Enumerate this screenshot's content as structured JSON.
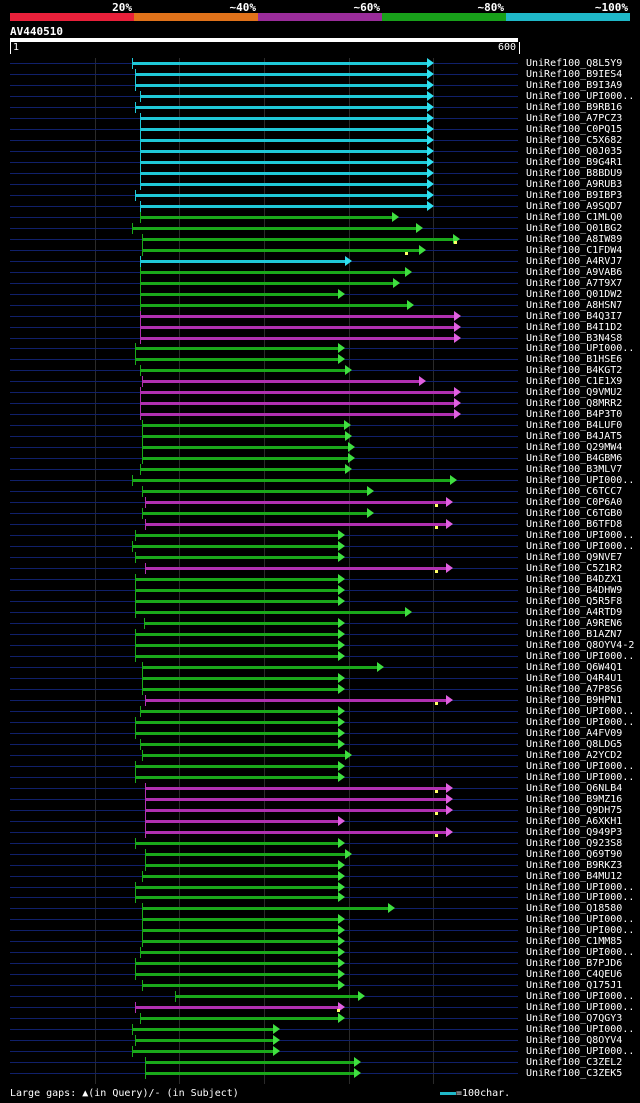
{
  "legend": {
    "items": [
      {
        "label": "20%",
        "color": "#e8203a"
      },
      {
        "label": "~40%",
        "color": "#e0721a"
      },
      {
        "label": "~60%",
        "color": "#9a2c9a"
      },
      {
        "label": "~80%",
        "color": "#18a01a"
      },
      {
        "label": "~100%",
        "color": "#1fb8c8"
      }
    ]
  },
  "query": {
    "label": "AV440510",
    "length_start": "1",
    "length_end": "600"
  },
  "footer": {
    "gaps_text": "Large gaps: ▲(in Query)/- (in Subject)",
    "scale_text": "=100char."
  },
  "hits": [
    {
      "name": "UniRef100_Q8L5Y9",
      "start": 144,
      "end": 500,
      "identity": "100"
    },
    {
      "name": "UniRef100_B9IES4",
      "start": 148,
      "end": 500,
      "identity": "100"
    },
    {
      "name": "UniRef100_B9I3A9",
      "start": 148,
      "end": 500,
      "identity": "100"
    },
    {
      "name": "UniRef100_UPI000..",
      "start": 154,
      "end": 500,
      "identity": "100"
    },
    {
      "name": "UniRef100_B9RB16",
      "start": 148,
      "end": 500,
      "identity": "100"
    },
    {
      "name": "UniRef100_A7PCZ3",
      "start": 154,
      "end": 500,
      "identity": "100"
    },
    {
      "name": "UniRef100_C0PQ15",
      "start": 154,
      "end": 500,
      "identity": "100"
    },
    {
      "name": "UniRef100_C5X682",
      "start": 154,
      "end": 500,
      "identity": "100"
    },
    {
      "name": "UniRef100_Q0J035",
      "start": 154,
      "end": 500,
      "identity": "100"
    },
    {
      "name": "UniRef100_B9G4R1",
      "start": 154,
      "end": 500,
      "identity": "100"
    },
    {
      "name": "UniRef100_B8BDU9",
      "start": 154,
      "end": 500,
      "identity": "100"
    },
    {
      "name": "UniRef100_A9RUB3",
      "start": 154,
      "end": 500,
      "identity": "100"
    },
    {
      "name": "UniRef100_B9IBP3",
      "start": 148,
      "end": 500,
      "identity": "100"
    },
    {
      "name": "UniRef100_A9SQD7",
      "start": 154,
      "end": 500,
      "identity": "100"
    },
    {
      "name": "UniRef100_C1MLQ0",
      "start": 154,
      "end": 458,
      "identity": "80"
    },
    {
      "name": "UniRef100_Q01BG2",
      "start": 144,
      "end": 487,
      "identity": "80"
    },
    {
      "name": "UniRef100_A8IW89",
      "start": 156,
      "end": 530,
      "identity": "80",
      "gap": 524
    },
    {
      "name": "UniRef100_C1FDW4",
      "start": 156,
      "end": 490,
      "identity": "80",
      "gap": 466
    },
    {
      "name": "UniRef100_A4RVJ7",
      "start": 154,
      "end": 403,
      "identity": "100"
    },
    {
      "name": "UniRef100_A9VAB6",
      "start": 154,
      "end": 474,
      "identity": "80"
    },
    {
      "name": "UniRef100_A7T9X7",
      "start": 154,
      "end": 460,
      "identity": "80"
    },
    {
      "name": "UniRef100_Q01DW2",
      "start": 154,
      "end": 395,
      "identity": "80"
    },
    {
      "name": "UniRef100_A8HSN7",
      "start": 154,
      "end": 476,
      "identity": "80"
    },
    {
      "name": "UniRef100_B4Q3I7",
      "start": 154,
      "end": 531,
      "identity": "60"
    },
    {
      "name": "UniRef100_B4I1D2",
      "start": 154,
      "end": 531,
      "identity": "60"
    },
    {
      "name": "UniRef100_B3N4S8",
      "start": 154,
      "end": 531,
      "identity": "60"
    },
    {
      "name": "UniRef100_UPI000..",
      "start": 148,
      "end": 395,
      "identity": "80"
    },
    {
      "name": "UniRef100_B1HSE6",
      "start": 148,
      "end": 395,
      "identity": "80"
    },
    {
      "name": "UniRef100_B4KGT2",
      "start": 154,
      "end": 403,
      "identity": "80"
    },
    {
      "name": "UniRef100_C1E1X9",
      "start": 156,
      "end": 490,
      "identity": "60"
    },
    {
      "name": "UniRef100_Q9VMU2",
      "start": 154,
      "end": 531,
      "identity": "60"
    },
    {
      "name": "UniRef100_Q8MRR2",
      "start": 154,
      "end": 531,
      "identity": "60"
    },
    {
      "name": "UniRef100_B4P3T0",
      "start": 154,
      "end": 531,
      "identity": "60"
    },
    {
      "name": "UniRef100_B4LUF0",
      "start": 156,
      "end": 402,
      "identity": "80"
    },
    {
      "name": "UniRef100_B4JAT5",
      "start": 156,
      "end": 403,
      "identity": "80"
    },
    {
      "name": "UniRef100_Q29MW4",
      "start": 156,
      "end": 406,
      "identity": "80"
    },
    {
      "name": "UniRef100_B4GBM6",
      "start": 156,
      "end": 406,
      "identity": "80"
    },
    {
      "name": "UniRef100_B3MLV7",
      "start": 154,
      "end": 403,
      "identity": "80"
    },
    {
      "name": "UniRef100_UPI000..",
      "start": 144,
      "end": 527,
      "identity": "80"
    },
    {
      "name": "UniRef100_C6TCC7",
      "start": 156,
      "end": 429,
      "identity": "80"
    },
    {
      "name": "UniRef100_C0P6A0",
      "start": 159,
      "end": 522,
      "identity": "60",
      "gap": 502
    },
    {
      "name": "UniRef100_C6TGB0",
      "start": 156,
      "end": 429,
      "identity": "80"
    },
    {
      "name": "UniRef100_B6TFD8",
      "start": 159,
      "end": 522,
      "identity": "60",
      "gap": 502
    },
    {
      "name": "UniRef100_UPI000..",
      "start": 148,
      "end": 395,
      "identity": "80"
    },
    {
      "name": "UniRef100_UPI000..",
      "start": 144,
      "end": 395,
      "identity": "80"
    },
    {
      "name": "UniRef100_Q9NVE7",
      "start": 148,
      "end": 395,
      "identity": "80"
    },
    {
      "name": "UniRef100_C5Z1R2",
      "start": 159,
      "end": 522,
      "identity": "60",
      "gap": 502
    },
    {
      "name": "UniRef100_B4DZX1",
      "start": 148,
      "end": 395,
      "identity": "80"
    },
    {
      "name": "UniRef100_B4DHW9",
      "start": 148,
      "end": 395,
      "identity": "80"
    },
    {
      "name": "UniRef100_Q5R5F8",
      "start": 148,
      "end": 395,
      "identity": "80"
    },
    {
      "name": "UniRef100_A4RTD9",
      "start": 148,
      "end": 474,
      "identity": "80"
    },
    {
      "name": "UniRef100_A9REN6",
      "start": 158,
      "end": 395,
      "identity": "80"
    },
    {
      "name": "UniRef100_B1AZN7",
      "start": 148,
      "end": 395,
      "identity": "80"
    },
    {
      "name": "UniRef100_Q8OYV4-2",
      "start": 148,
      "end": 395,
      "identity": "80"
    },
    {
      "name": "UniRef100_UPI000..",
      "start": 148,
      "end": 395,
      "identity": "80"
    },
    {
      "name": "UniRef100_Q6W4Q1",
      "start": 156,
      "end": 440,
      "identity": "80"
    },
    {
      "name": "UniRef100_Q4R4U1",
      "start": 156,
      "end": 395,
      "identity": "80"
    },
    {
      "name": "UniRef100_A7P8S6",
      "start": 156,
      "end": 395,
      "identity": "80"
    },
    {
      "name": "UniRef100_B9HPN1",
      "start": 159,
      "end": 522,
      "identity": "60",
      "gap": 502
    },
    {
      "name": "UniRef100_UPI000..",
      "start": 154,
      "end": 395,
      "identity": "80"
    },
    {
      "name": "UniRef100_UPI000..",
      "start": 148,
      "end": 395,
      "identity": "80"
    },
    {
      "name": "UniRef100_A4FV09",
      "start": 148,
      "end": 395,
      "identity": "80"
    },
    {
      "name": "UniRef100_Q8LDG5",
      "start": 154,
      "end": 395,
      "identity": "80"
    },
    {
      "name": "UniRef100_A2YCD2",
      "start": 156,
      "end": 403,
      "identity": "80"
    },
    {
      "name": "UniRef100_UPI000..",
      "start": 148,
      "end": 395,
      "identity": "80"
    },
    {
      "name": "UniRef100_UPI000..",
      "start": 148,
      "end": 395,
      "identity": "80"
    },
    {
      "name": "UniRef100_Q6NLB4",
      "start": 159,
      "end": 522,
      "identity": "60",
      "gap": 502
    },
    {
      "name": "UniRef100_B9MZ16",
      "start": 159,
      "end": 522,
      "identity": "60"
    },
    {
      "name": "UniRef100_Q9DH75",
      "start": 159,
      "end": 522,
      "identity": "60",
      "gap": 502
    },
    {
      "name": "UniRef100_A6XKH1",
      "start": 159,
      "end": 395,
      "identity": "60"
    },
    {
      "name": "UniRef100_Q949P3",
      "start": 159,
      "end": 522,
      "identity": "60",
      "gap": 502
    },
    {
      "name": "UniRef100_Q923S8",
      "start": 148,
      "end": 395,
      "identity": "80"
    },
    {
      "name": "UniRef100_Q69T90",
      "start": 159,
      "end": 403,
      "identity": "80"
    },
    {
      "name": "UniRef100_B9RKZ3",
      "start": 159,
      "end": 395,
      "identity": "80"
    },
    {
      "name": "UniRef100_B4MU12",
      "start": 156,
      "end": 395,
      "identity": "80"
    },
    {
      "name": "UniRef100_UPI000..",
      "start": 148,
      "end": 395,
      "identity": "80"
    },
    {
      "name": "UniRef100_UPI000..",
      "start": 148,
      "end": 395,
      "identity": "80"
    },
    {
      "name": "UniRef100_Q18580",
      "start": 156,
      "end": 454,
      "identity": "80"
    },
    {
      "name": "UniRef100_UPI000..",
      "start": 156,
      "end": 395,
      "identity": "80"
    },
    {
      "name": "UniRef100_UPI000..",
      "start": 156,
      "end": 395,
      "identity": "80"
    },
    {
      "name": "UniRef100_C1MM85",
      "start": 156,
      "end": 395,
      "identity": "80"
    },
    {
      "name": "UniRef100_UPI000..",
      "start": 154,
      "end": 395,
      "identity": "80"
    },
    {
      "name": "UniRef100_B7PJD6",
      "start": 148,
      "end": 395,
      "identity": "80"
    },
    {
      "name": "UniRef100_C4QEU6",
      "start": 148,
      "end": 395,
      "identity": "80"
    },
    {
      "name": "UniRef100_Q175J1",
      "start": 156,
      "end": 395,
      "identity": "80"
    },
    {
      "name": "UniRef100_UPI000..",
      "start": 195,
      "end": 418,
      "identity": "80"
    },
    {
      "name": "UniRef100_UPI000..",
      "start": 148,
      "end": 395,
      "identity": "60",
      "gap": 386
    },
    {
      "name": "UniRef100_Q7QGY3",
      "start": 154,
      "end": 395,
      "identity": "80"
    },
    {
      "name": "UniRef100_UPI000..",
      "start": 144,
      "end": 318,
      "identity": "80"
    },
    {
      "name": "UniRef100_Q8OYV4",
      "start": 148,
      "end": 318,
      "identity": "80"
    },
    {
      "name": "UniRef100_UPI000..",
      "start": 144,
      "end": 318,
      "identity": "80"
    },
    {
      "name": "UniRef100_C3ZEL2",
      "start": 159,
      "end": 413,
      "identity": "80"
    },
    {
      "name": "UniRef100_C3ZEK5",
      "start": 159,
      "end": 413,
      "identity": "80"
    }
  ]
}
